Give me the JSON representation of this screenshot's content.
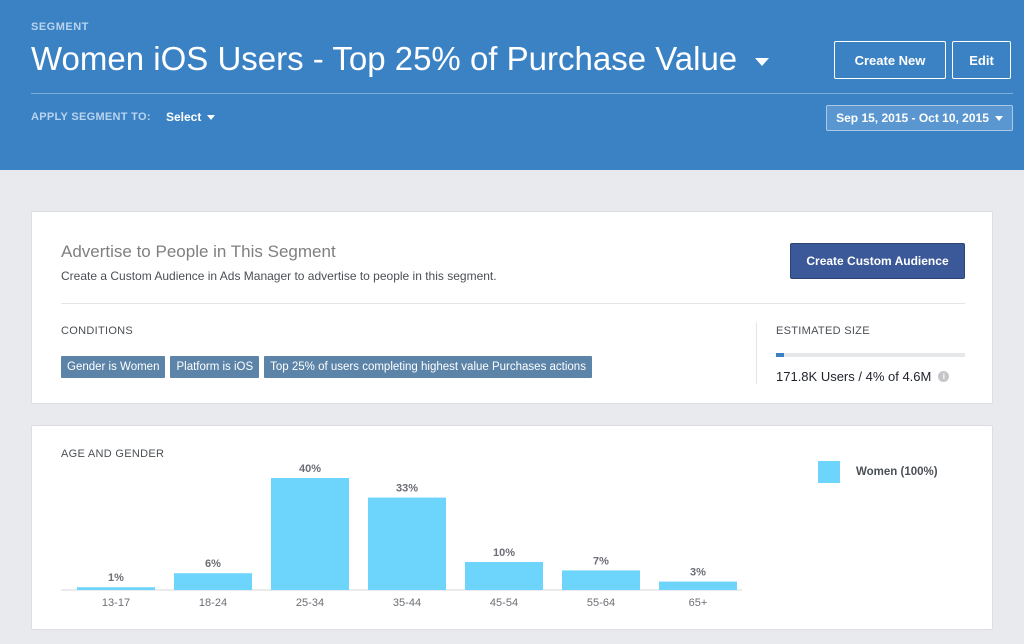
{
  "header": {
    "segment_label": "SEGMENT",
    "title": "Women iOS Users - Top 25% of Purchase Value",
    "create_new_label": "Create New",
    "edit_label": "Edit",
    "apply_segment_label": "APPLY SEGMENT TO:",
    "apply_select_value": "Select",
    "date_range": "Sep 15, 2015 - Oct 10, 2015"
  },
  "advertise": {
    "title": "Advertise to People in This Segment",
    "description": "Create a Custom Audience in Ads Manager to advertise to people in this segment.",
    "button_label": "Create Custom Audience",
    "conditions_label": "CONDITIONS",
    "conditions": [
      "Gender is Women",
      "Platform is iOS",
      "Top 25% of users completing highest value Purchases actions"
    ],
    "estimated_size_label": "ESTIMATED SIZE",
    "estimated_size_value": "171.8K Users / 4% of 4.6M",
    "estimated_fraction": 0.04
  },
  "chart_title": "AGE AND GENDER",
  "legend_label": "Women (100%)",
  "colors": {
    "header_bg": "#3b82c4",
    "bar": "#6dd5fb",
    "primary_button": "#3b5998",
    "tag": "#5c84a8"
  },
  "chart_data": {
    "type": "bar",
    "title": "AGE AND GENDER",
    "categories": [
      "13-17",
      "18-24",
      "25-34",
      "35-44",
      "45-54",
      "55-64",
      "65+"
    ],
    "series": [
      {
        "name": "Women (100%)",
        "values": [
          1,
          6,
          40,
          33,
          10,
          7,
          3
        ]
      }
    ],
    "value_labels": [
      "1%",
      "6%",
      "40%",
      "33%",
      "10%",
      "7%",
      "3%"
    ],
    "ylim": [
      0,
      40
    ],
    "xlabel": "",
    "ylabel": "",
    "legend": "top-right"
  }
}
